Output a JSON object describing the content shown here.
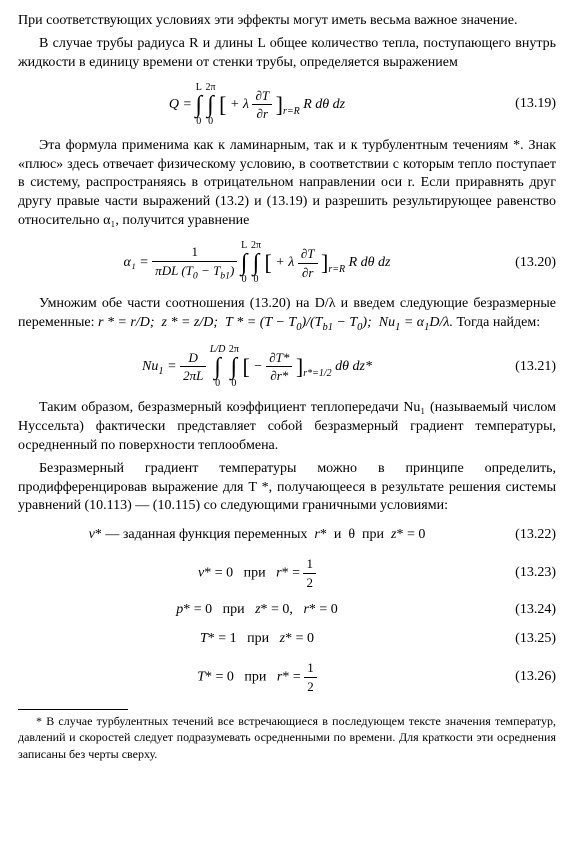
{
  "para1": "При соответствующих условиях эти эффекты могут иметь весьма важное значение.",
  "para2": "В случае трубы радиуса R и длины L общее количество тепла, поступающего внутрь жидкости в единицу времени от стенки трубы, определяется выражением",
  "eq19": {
    "lhs": "Q =",
    "int1_top": "L",
    "int1_bot": "0",
    "int2_top": "2π",
    "int2_bot": "0",
    "bracket": "+ λ",
    "frac_num": "∂T",
    "frac_den": "∂r",
    "sub": "r=R",
    "tail": "R dθ dz",
    "num": "(13.19)"
  },
  "para3": "Эта формула применима как к ламинарным, так и к турбулентным течениям *. Знак «плюс» здесь отвечает физическому условию, в соответствии с которым тепло поступает в систему, распространяясь в отрицательном направлении оси r. Если приравнять друг другу правые части выражений (13.2) и (13.19) и разрешить результирующее равенство относительно α₁, получится уравнение",
  "eq20": {
    "lhs": "α₁ =",
    "frac1_num": "1",
    "frac1_den": "πDL (T₀ − T_{b1})",
    "int1_top": "L",
    "int1_bot": "0",
    "int2_top": "2π",
    "int2_bot": "0",
    "bracket": "+ λ",
    "frac_num": "∂T",
    "frac_den": "∂r",
    "sub": "r=R",
    "tail": "R dθ dz",
    "num": "(13.20)"
  },
  "para4a": "Умножим обе части соотношения (13.20) на D/λ и введем следующие безразмерные переменные: ",
  "para4b": "r * = r/D;  z * = z/D;  T * = (T − T₀)/(T_{b1} − T₀);  Nu₁ = α₁D/λ.",
  "para4c": "  Тогда найдем:",
  "eq21": {
    "lhs": "Nu₁ =",
    "frac1_num": "D",
    "frac1_den": "2πL",
    "int1_top": "L/D",
    "int1_bot": "0",
    "int2_top": "2π",
    "int2_bot": "0",
    "bracket": "−",
    "frac_num": "∂T*",
    "frac_den": "∂r*",
    "sub": "r*=1/2",
    "tail": "dθ  dz*",
    "num": "(13.21)"
  },
  "para5": "Таким образом, безразмерный коэффициент теплопередачи Nu₁ (называемый числом Нуссельта) фактически представляет собой безразмерный градиент температуры, осредненный по поверхности теплообмена.",
  "para6": "Безразмерный градиент температуры можно в принципе определить, продифференцировав выражение для T *, получающееся в результате решения системы уравнений (10.113) — (10.115) со следующими граничными условиями:",
  "eq22": {
    "body": "v* — заданная функция переменных  r*  и  θ  при  z* = 0",
    "num": "(13.22)"
  },
  "eq23": {
    "lhs": "v* = 0   при   r* =",
    "frac_num": "1",
    "frac_den": "2",
    "num": "(13.23)"
  },
  "eq24": {
    "body": "p* = 0   при   z* = 0,   r* = 0",
    "num": "(13.24)"
  },
  "eq25": {
    "body": "T* = 1   при   z* = 0",
    "num": "(13.25)"
  },
  "eq26": {
    "lhs": "T* = 0   при   r* =",
    "frac_num": "1",
    "frac_den": "2",
    "num": "(13.26)"
  },
  "footnote": "* В случае турбулентных течений все встречающиеся в последующем тексте значения температур, давлений и скоростей следует подразумевать осредненными по времени. Для краткости эти осреднения записаны без черты сверху."
}
